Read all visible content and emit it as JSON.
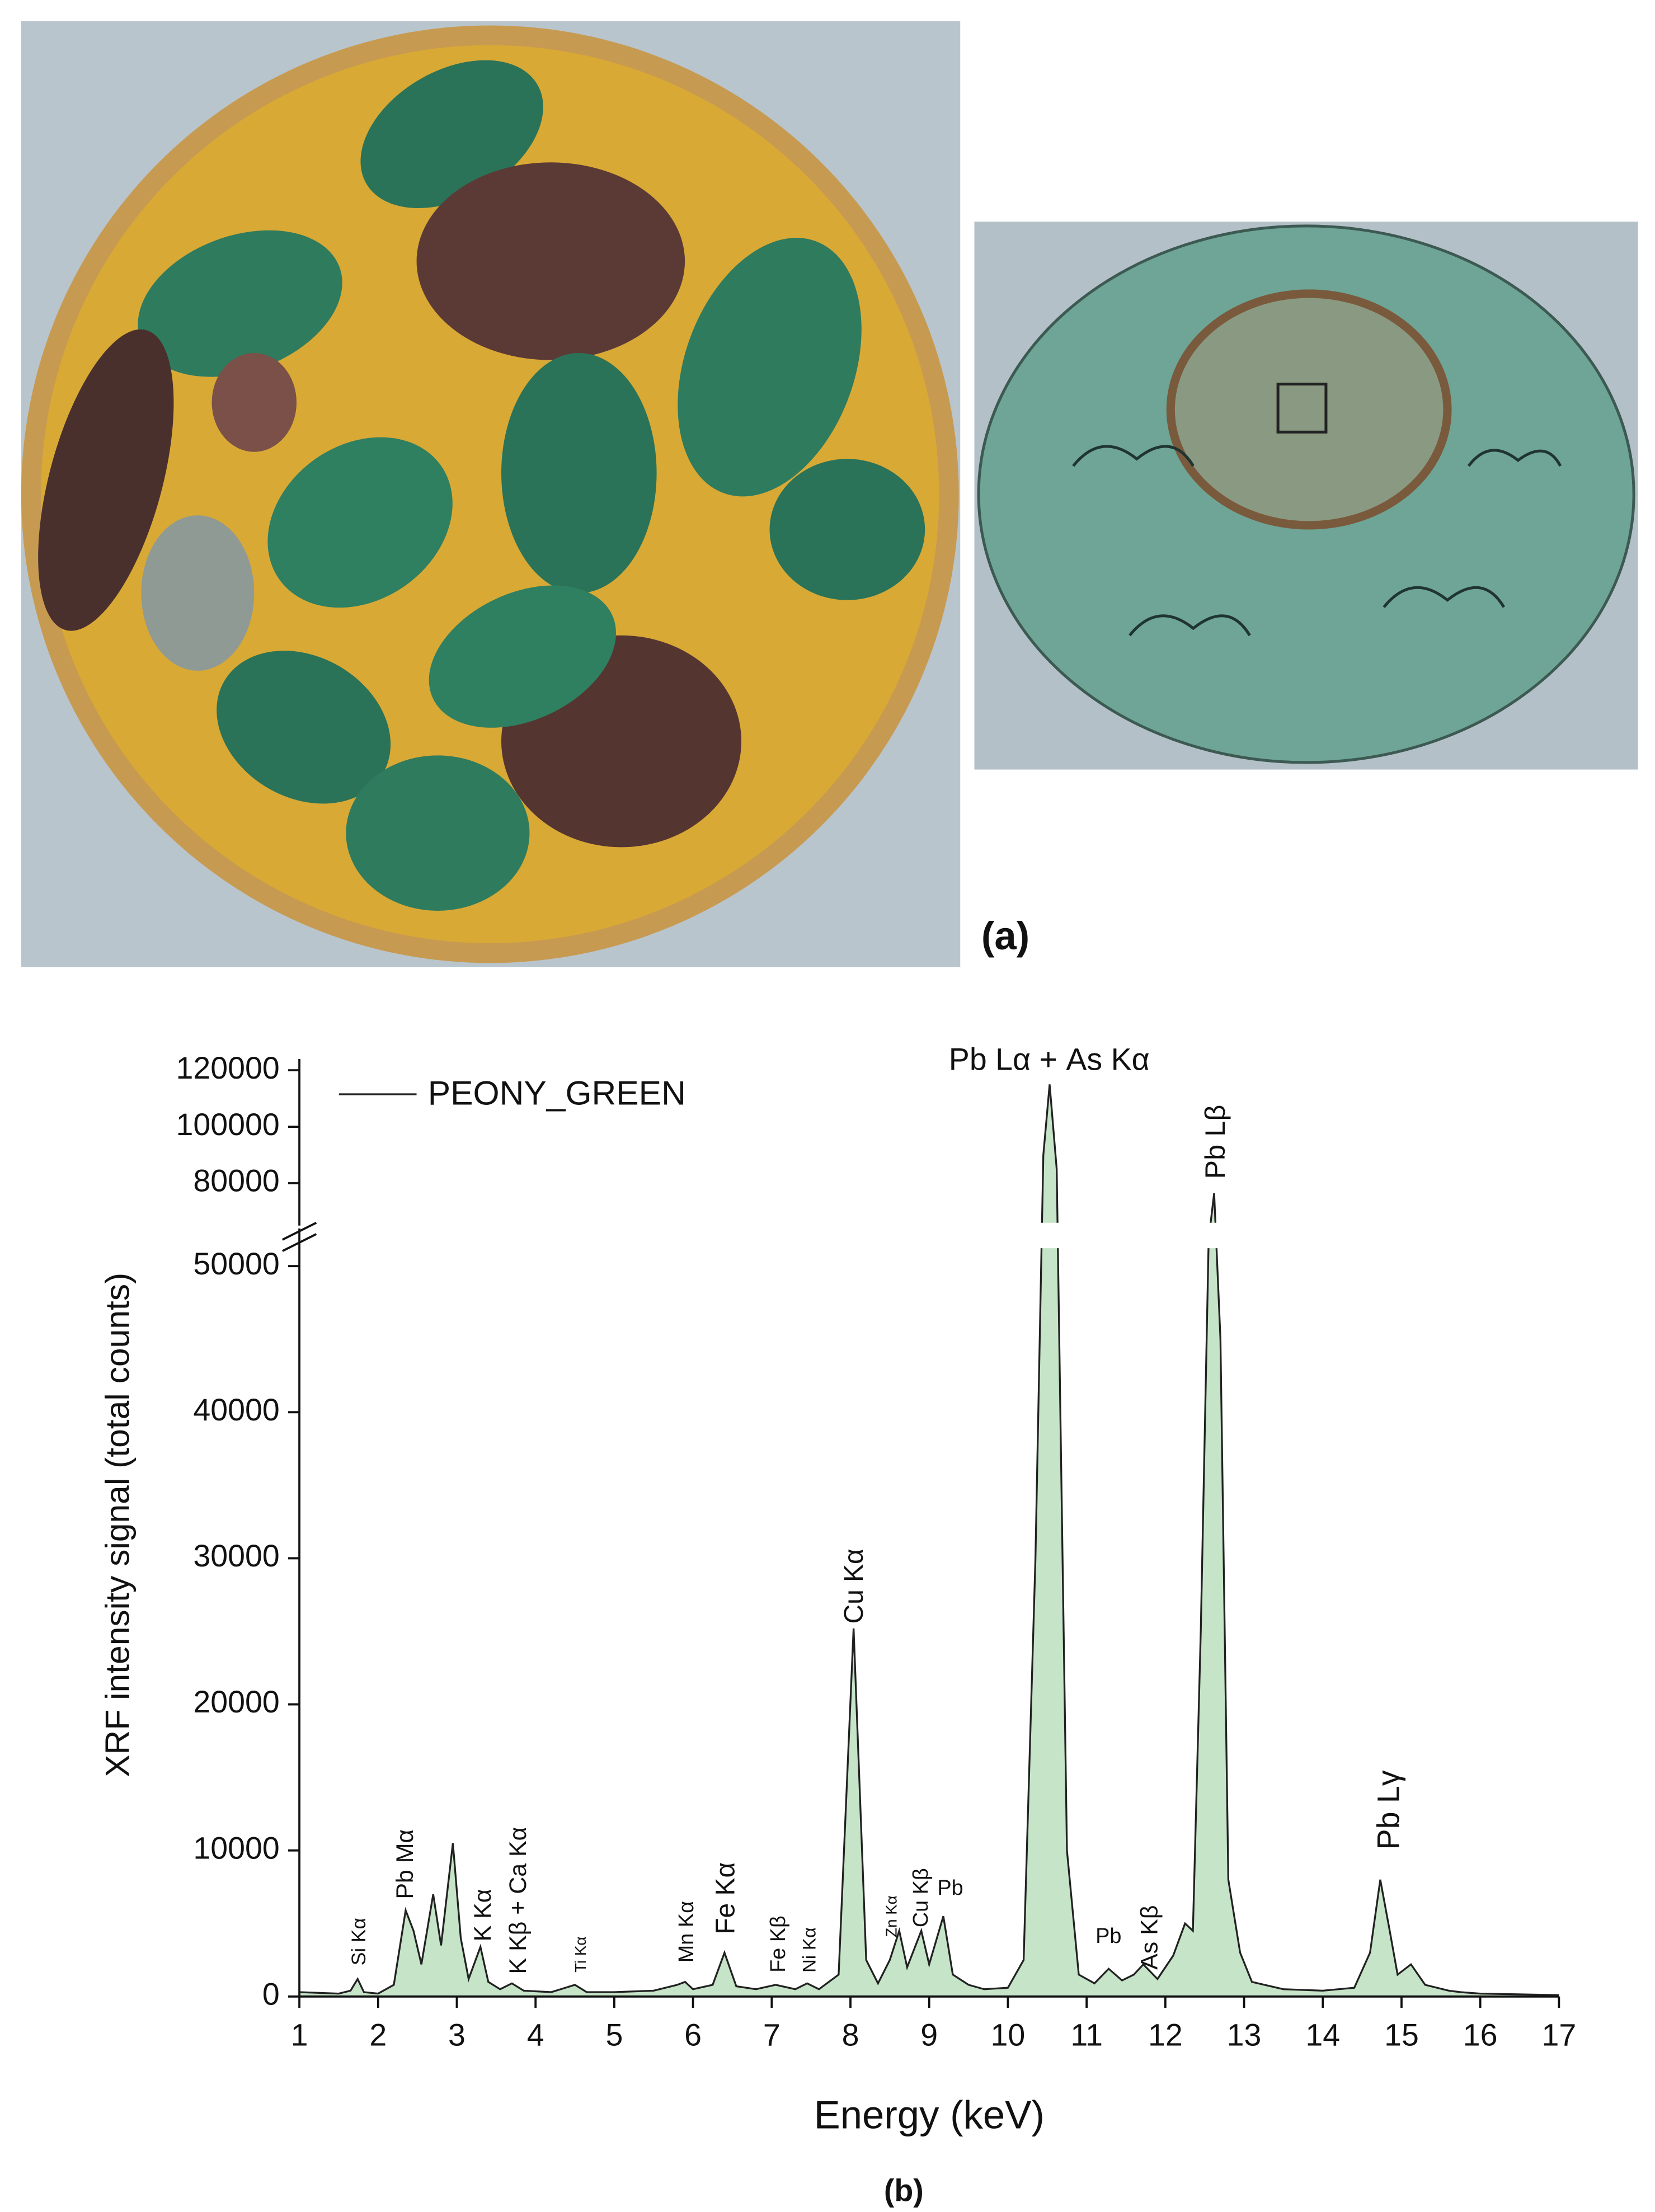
{
  "figure": {
    "label_a": "(a)",
    "label_b": "(b)"
  },
  "chart_data": {
    "type": "line",
    "xlabel": "Energy (keV)",
    "ylabel": "XRF intensity signal (total counts)",
    "series": [
      {
        "name": "PEONY_GREEN",
        "color": "#222222",
        "fill": "#c6e4c8",
        "x": [
          1.0,
          1.5,
          1.65,
          1.74,
          1.82,
          2.0,
          2.2,
          2.35,
          2.45,
          2.55,
          2.7,
          2.8,
          2.95,
          3.05,
          3.15,
          3.3,
          3.4,
          3.55,
          3.7,
          3.85,
          4.2,
          4.5,
          4.65,
          5.0,
          5.5,
          5.8,
          5.9,
          6.0,
          6.25,
          6.4,
          6.55,
          6.8,
          7.05,
          7.3,
          7.45,
          7.6,
          7.85,
          8.04,
          8.2,
          8.35,
          8.5,
          8.62,
          8.72,
          8.9,
          9.0,
          9.18,
          9.3,
          9.5,
          9.7,
          10.0,
          10.2,
          10.35,
          10.45,
          10.53,
          10.62,
          10.75,
          10.9,
          11.1,
          11.28,
          11.45,
          11.6,
          11.72,
          11.9,
          12.1,
          12.25,
          12.35,
          12.45,
          12.55,
          12.62,
          12.7,
          12.8,
          12.95,
          13.1,
          13.5,
          14.0,
          14.4,
          14.6,
          14.73,
          14.85,
          14.95,
          15.12,
          15.3,
          15.6,
          15.75,
          16.0,
          17.0
        ],
        "values": [
          300,
          200,
          400,
          1200,
          300,
          200,
          800,
          5900,
          4500,
          2200,
          7000,
          3500,
          10500,
          4000,
          1200,
          3400,
          1000,
          500,
          900,
          400,
          300,
          800,
          300,
          300,
          400,
          800,
          1000,
          500,
          800,
          3000,
          700,
          500,
          800,
          500,
          900,
          500,
          1500,
          25200,
          2500,
          900,
          2500,
          4500,
          2000,
          4500,
          2200,
          5500,
          1500,
          800,
          500,
          600,
          2500,
          30000,
          90000,
          115000,
          85000,
          10000,
          1500,
          900,
          1900,
          1100,
          1500,
          2200,
          1200,
          2800,
          5000,
          4500,
          25000,
          60000,
          76500,
          45000,
          8000,
          3000,
          1000,
          500,
          400,
          600,
          3000,
          8000,
          4500,
          1500,
          2200,
          800,
          400,
          300,
          200,
          100
        ]
      }
    ],
    "xlim": [
      1,
      17
    ],
    "xticks": [
      1,
      2,
      3,
      4,
      5,
      6,
      7,
      8,
      9,
      10,
      11,
      12,
      13,
      14,
      15,
      16,
      17
    ],
    "ylim": [
      0,
      52000
    ],
    "yticks": [
      0,
      10000,
      20000,
      30000,
      40000,
      50000
    ],
    "ylim_upper": [
      60000,
      124000
    ],
    "yticks_upper": [
      80000,
      100000,
      120000
    ],
    "axis_break": true,
    "legend": "upper left",
    "annotations": [
      "Si Kα",
      "Pb Mα",
      "K Kα",
      "K Kβ + Ca Kα",
      "Ti Kα",
      "Mn Kα",
      "Fe Kα",
      "Fe Kβ",
      "Ni Kα",
      "Cu Kα",
      "Zn Kα",
      "Cu Kβ",
      "Pb",
      "Pb",
      "As Kβ",
      "Pb Lα + As Kα",
      "Pb Lβ",
      "Pb Lγ"
    ]
  }
}
